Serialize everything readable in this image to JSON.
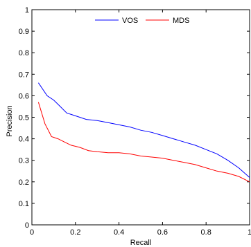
{
  "chart_data": {
    "type": "line",
    "title": "",
    "xlabel": "Recall",
    "ylabel": "Precision",
    "xlim": [
      0,
      1
    ],
    "ylim": [
      0,
      1
    ],
    "xticks": [
      0,
      0.2,
      0.4,
      0.6,
      0.8,
      1
    ],
    "xtick_labels": [
      "0",
      "0.2",
      "0.4",
      "0.6",
      "0.8",
      "1"
    ],
    "yticks": [
      0,
      0.1,
      0.2,
      0.3,
      0.4,
      0.5,
      0.6,
      0.7,
      0.8,
      0.9,
      1
    ],
    "ytick_labels": [
      "0",
      "0.1",
      "0.2",
      "0.3",
      "0.4",
      "0.5",
      "0.6",
      "0.7",
      "0.8",
      "0.9",
      "1"
    ],
    "grid": false,
    "legend": "top-center",
    "series": [
      {
        "name": "VOS",
        "color": "#0000ff",
        "x": [
          0.03,
          0.07,
          0.1,
          0.13,
          0.16,
          0.19,
          0.22,
          0.25,
          0.3,
          0.35,
          0.4,
          0.45,
          0.5,
          0.55,
          0.6,
          0.65,
          0.7,
          0.75,
          0.8,
          0.85,
          0.9,
          0.95,
          1.0
        ],
        "y": [
          0.66,
          0.6,
          0.58,
          0.55,
          0.52,
          0.51,
          0.5,
          0.49,
          0.485,
          0.475,
          0.465,
          0.455,
          0.44,
          0.43,
          0.415,
          0.4,
          0.385,
          0.37,
          0.35,
          0.33,
          0.3,
          0.265,
          0.22
        ]
      },
      {
        "name": "MDS",
        "color": "#ff0000",
        "x": [
          0.03,
          0.06,
          0.09,
          0.12,
          0.15,
          0.18,
          0.22,
          0.26,
          0.3,
          0.35,
          0.4,
          0.45,
          0.5,
          0.55,
          0.6,
          0.65,
          0.7,
          0.75,
          0.8,
          0.85,
          0.9,
          0.95,
          1.0
        ],
        "y": [
          0.57,
          0.47,
          0.41,
          0.4,
          0.385,
          0.37,
          0.36,
          0.345,
          0.34,
          0.335,
          0.335,
          0.33,
          0.32,
          0.315,
          0.31,
          0.3,
          0.29,
          0.28,
          0.265,
          0.25,
          0.24,
          0.225,
          0.2
        ]
      }
    ]
  }
}
